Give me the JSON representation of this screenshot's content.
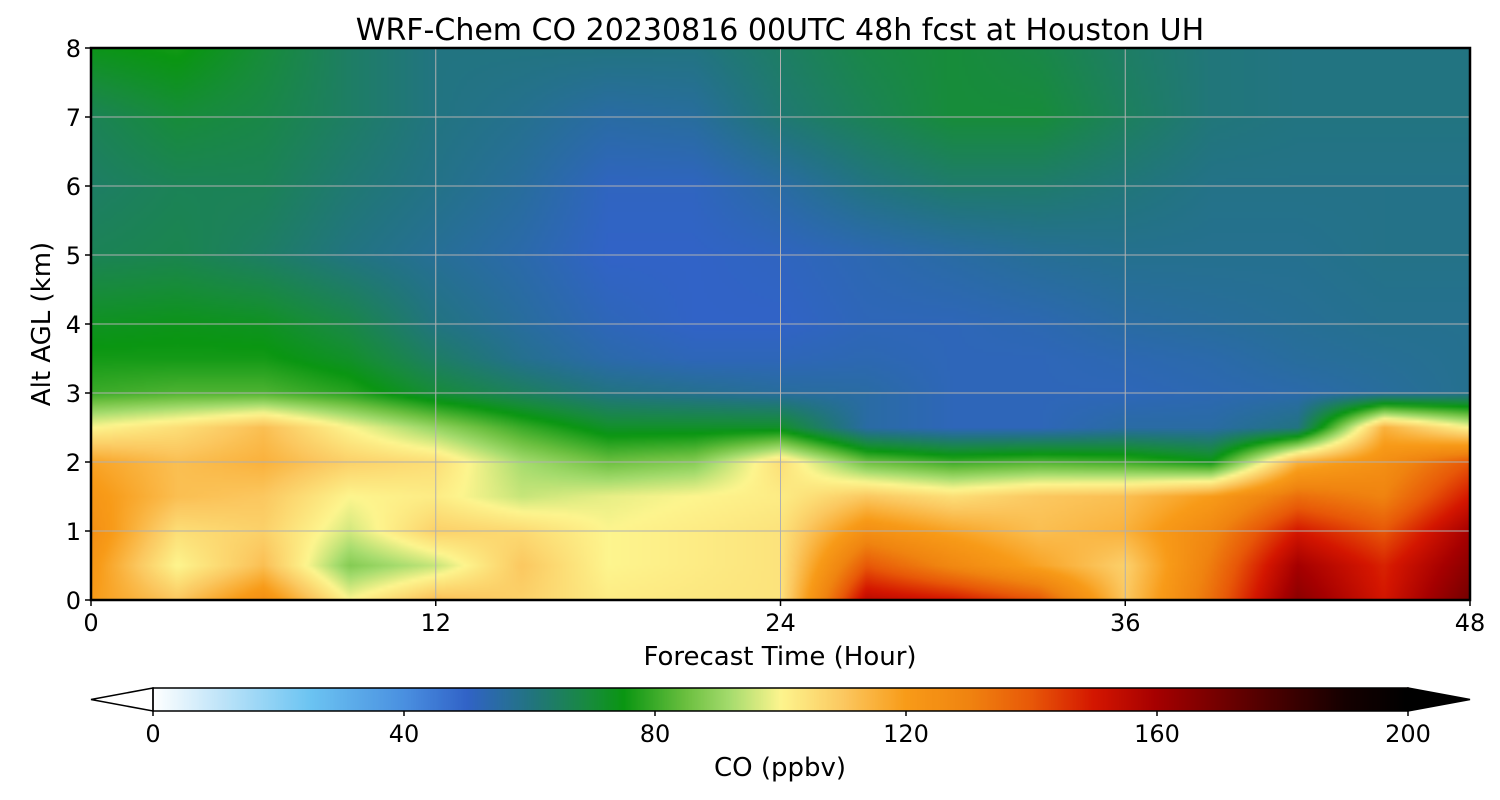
{
  "chart_data": {
    "type": "heatmap",
    "title": "WRF-Chem CO  20230816 00UTC 48h fcst at Houston UH",
    "xlabel": "Forecast Time (Hour)",
    "ylabel": "Alt AGL (km)",
    "xlim": [
      0,
      48
    ],
    "ylim": [
      0,
      8
    ],
    "xticks": [
      0,
      12,
      24,
      36,
      48
    ],
    "yticks": [
      0,
      1,
      2,
      3,
      4,
      5,
      6,
      7,
      8
    ],
    "grid": true,
    "x": [
      0,
      3,
      6,
      9,
      12,
      15,
      18,
      21,
      24,
      27,
      30,
      33,
      36,
      39,
      42,
      45,
      48
    ],
    "y": [
      0,
      0.5,
      1,
      1.5,
      2,
      2.5,
      3,
      3.5,
      4,
      5,
      6,
      7,
      8
    ],
    "z": [
      [
        120,
        110,
        125,
        100,
        112,
        108,
        102,
        103,
        104,
        155,
        150,
        140,
        110,
        135,
        165,
        150,
        170
      ],
      [
        122,
        100,
        112,
        88,
        95,
        110,
        100,
        102,
        104,
        140,
        128,
        118,
        108,
        132,
        160,
        148,
        165
      ],
      [
        125,
        105,
        108,
        96,
        108,
        106,
        100,
        102,
        104,
        125,
        118,
        112,
        115,
        128,
        150,
        140,
        160
      ],
      [
        122,
        112,
        110,
        100,
        102,
        95,
        98,
        100,
        102,
        110,
        105,
        110,
        112,
        120,
        135,
        130,
        150
      ],
      [
        118,
        112,
        115,
        108,
        105,
        92,
        85,
        88,
        105,
        85,
        80,
        82,
        80,
        75,
        115,
        125,
        140
      ],
      [
        100,
        105,
        112,
        100,
        90,
        80,
        72,
        72,
        72,
        55,
        52,
        52,
        55,
        55,
        60,
        115,
        100
      ],
      [
        80,
        82,
        82,
        78,
        70,
        65,
        60,
        58,
        56,
        55,
        52,
        52,
        52,
        53,
        54,
        56,
        58
      ],
      [
        76,
        76,
        76,
        72,
        64,
        58,
        54,
        52,
        52,
        53,
        52,
        52,
        53,
        54,
        56,
        57,
        58
      ],
      [
        73,
        74,
        73,
        68,
        60,
        56,
        52,
        50,
        50,
        52,
        52,
        53,
        55,
        56,
        57,
        58,
        58
      ],
      [
        66,
        67,
        64,
        60,
        57,
        54,
        50,
        50,
        51,
        53,
        55,
        57,
        58,
        58,
        58,
        59,
        59
      ],
      [
        64,
        66,
        66,
        62,
        59,
        56,
        51,
        51,
        55,
        60,
        63,
        63,
        61,
        59,
        59,
        59,
        59
      ],
      [
        66,
        70,
        68,
        64,
        60,
        58,
        55,
        56,
        62,
        66,
        70,
        70,
        65,
        61,
        60,
        60,
        60
      ],
      [
        74,
        76,
        70,
        64,
        60,
        60,
        60,
        60,
        64,
        68,
        70,
        68,
        64,
        61,
        60,
        60,
        60
      ]
    ],
    "colorbar": {
      "label": "CO  (ppbv)",
      "min": 0,
      "max": 200,
      "ticks": [
        0,
        40,
        80,
        120,
        160,
        200
      ],
      "extend": "both",
      "stops": [
        {
          "v": 0,
          "c": "#ffffff"
        },
        {
          "v": 12,
          "c": "#b8e2f8"
        },
        {
          "v": 25,
          "c": "#6cc4f2"
        },
        {
          "v": 40,
          "c": "#4a90e0"
        },
        {
          "v": 50,
          "c": "#3163c7"
        },
        {
          "v": 60,
          "c": "#227481"
        },
        {
          "v": 70,
          "c": "#178c3a"
        },
        {
          "v": 75,
          "c": "#0a9612"
        },
        {
          "v": 85,
          "c": "#6cc040"
        },
        {
          "v": 92,
          "c": "#a6dc6e"
        },
        {
          "v": 100,
          "c": "#fdf58e"
        },
        {
          "v": 110,
          "c": "#fbc860"
        },
        {
          "v": 120,
          "c": "#f89b18"
        },
        {
          "v": 130,
          "c": "#f08410"
        },
        {
          "v": 140,
          "c": "#e85808"
        },
        {
          "v": 150,
          "c": "#d41600"
        },
        {
          "v": 160,
          "c": "#a50000"
        },
        {
          "v": 175,
          "c": "#5a0000"
        },
        {
          "v": 190,
          "c": "#150000"
        },
        {
          "v": 200,
          "c": "#000000"
        }
      ]
    }
  }
}
